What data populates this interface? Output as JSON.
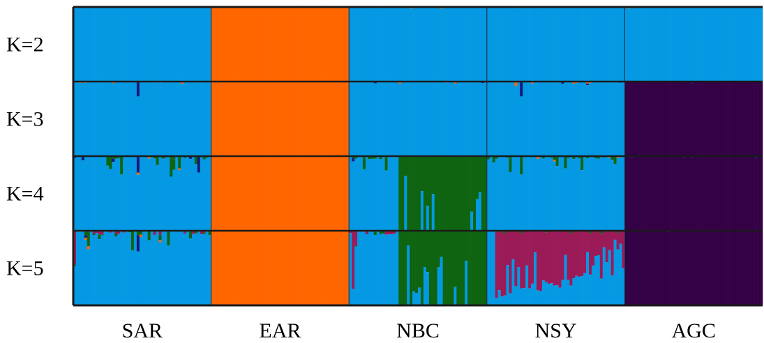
{
  "colors": {
    "blue": "#0499E2",
    "orange": "#FF6600",
    "purple": "#340046",
    "green": "#0E6410",
    "magenta": "#9B1B59",
    "navy": "#16197A",
    "frame": "#1a1a1a",
    "divider": "#1f3550"
  },
  "chart_data": {
    "type": "stacked-bar-admixture",
    "title": "",
    "xlabel": "",
    "ylabel": "",
    "ylim": [
      0,
      1
    ],
    "row_labels": [
      "K=2",
      "K=3",
      "K=4",
      "K=5"
    ],
    "populations": [
      "SAR",
      "EAR",
      "NBC",
      "NSY",
      "AGC"
    ],
    "individuals_per_population": 50,
    "dominant_cluster": [
      [
        "blue",
        "orange",
        "blue",
        "blue",
        "blue"
      ],
      [
        "blue",
        "orange",
        "blue",
        "blue",
        "purple"
      ],
      [
        "blue",
        "orange",
        "blue+green",
        "blue",
        "purple"
      ],
      [
        "blue",
        "orange",
        "blue+green",
        "magenta+blue",
        "purple"
      ]
    ],
    "notable_admixture": [
      {
        "K": 3,
        "population": "SAR",
        "individual": 23,
        "cluster": "navy",
        "proportion": 0.2
      },
      {
        "K": 3,
        "population": "NSY",
        "individual": 12,
        "cluster": "navy",
        "proportion": 0.2
      },
      {
        "K": 4,
        "population": "NBC",
        "blue_fraction_in_green_block": 0.15
      },
      {
        "K": 5,
        "population": "NSY",
        "magenta_fraction_range": [
          0.3,
          0.9
        ]
      },
      {
        "K": 5,
        "population": "SAR",
        "individual": 1,
        "cluster": "magenta",
        "proportion": 0.4
      }
    ]
  }
}
